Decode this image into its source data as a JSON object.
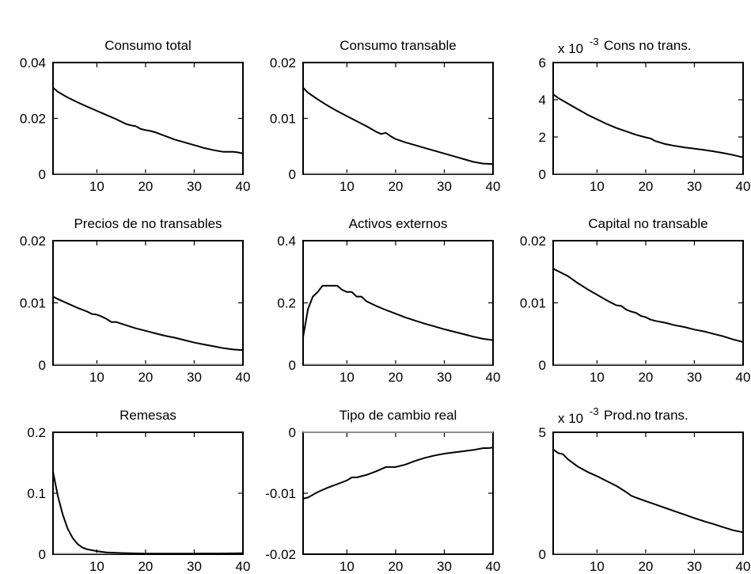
{
  "chart_data": [
    {
      "type": "line",
      "title": "Consumo total",
      "multiplier_text": "",
      "multiplier_exp": "",
      "xlim": [
        1,
        40
      ],
      "ylim": [
        0,
        0.04
      ],
      "xticks": [
        "10",
        "20",
        "30",
        "40"
      ],
      "yticks": [
        "0",
        "0.02",
        "0.04"
      ],
      "x": [
        1,
        2,
        4,
        6,
        8,
        10,
        12,
        14,
        16,
        17,
        18,
        19,
        20,
        21,
        22,
        24,
        26,
        28,
        30,
        32,
        34,
        36,
        38,
        39,
        40
      ],
      "y": [
        0.031,
        0.0295,
        0.0275,
        0.0258,
        0.0242,
        0.0227,
        0.0212,
        0.0197,
        0.018,
        0.0175,
        0.0172,
        0.0162,
        0.0158,
        0.0155,
        0.015,
        0.0137,
        0.0124,
        0.0114,
        0.0104,
        0.0094,
        0.0086,
        0.008,
        0.008,
        0.0078,
        0.0074
      ]
    },
    {
      "type": "line",
      "title": "Consumo transable",
      "multiplier_text": "",
      "multiplier_exp": "",
      "xlim": [
        1,
        40
      ],
      "ylim": [
        0,
        0.02
      ],
      "xticks": [
        "10",
        "20",
        "30",
        "40"
      ],
      "yticks": [
        "0",
        "0.01",
        "0.02"
      ],
      "x": [
        1,
        2,
        4,
        6,
        8,
        10,
        12,
        14,
        16,
        17,
        18,
        19,
        20,
        22,
        24,
        26,
        28,
        30,
        32,
        34,
        36,
        38,
        40
      ],
      "y": [
        0.0155,
        0.0146,
        0.0134,
        0.0123,
        0.0113,
        0.0104,
        0.0095,
        0.0086,
        0.0076,
        0.0072,
        0.0074,
        0.0068,
        0.0063,
        0.0057,
        0.0052,
        0.0047,
        0.0042,
        0.0037,
        0.0032,
        0.0027,
        0.0022,
        0.0019,
        0.0018
      ]
    },
    {
      "type": "line",
      "title": "Cons no trans.",
      "multiplier_text": "x 10",
      "multiplier_exp": "-3",
      "xlim": [
        1,
        40
      ],
      "ylim": [
        0,
        6
      ],
      "xticks": [
        "10",
        "20",
        "30",
        "40"
      ],
      "yticks": [
        "0",
        "2",
        "4",
        "6"
      ],
      "x": [
        1,
        2,
        4,
        6,
        8,
        10,
        12,
        14,
        16,
        18,
        20,
        21,
        22,
        24,
        26,
        28,
        30,
        32,
        34,
        36,
        38,
        40
      ],
      "y": [
        4.3,
        4.1,
        3.8,
        3.5,
        3.2,
        2.95,
        2.7,
        2.48,
        2.3,
        2.12,
        1.98,
        1.92,
        1.78,
        1.62,
        1.52,
        1.44,
        1.37,
        1.3,
        1.22,
        1.13,
        1.03,
        0.9
      ]
    },
    {
      "type": "line",
      "title": "Precios de no transables",
      "multiplier_text": "",
      "multiplier_exp": "",
      "xlim": [
        1,
        40
      ],
      "ylim": [
        0,
        0.02
      ],
      "xticks": [
        "10",
        "20",
        "30",
        "40"
      ],
      "yticks": [
        "0",
        "0.01",
        "0.02"
      ],
      "x": [
        1,
        2,
        4,
        6,
        8,
        9,
        10,
        11,
        12,
        13,
        14,
        16,
        18,
        20,
        22,
        24,
        26,
        28,
        30,
        32,
        34,
        36,
        38,
        40
      ],
      "y": [
        0.011,
        0.0106,
        0.0099,
        0.0092,
        0.0086,
        0.0082,
        0.0081,
        0.0078,
        0.0074,
        0.0069,
        0.0069,
        0.0064,
        0.0059,
        0.0055,
        0.0051,
        0.0047,
        0.0044,
        0.004,
        0.0036,
        0.0033,
        0.003,
        0.0027,
        0.0025,
        0.0024
      ]
    },
    {
      "type": "line",
      "title": "Activos externos",
      "multiplier_text": "",
      "multiplier_exp": "",
      "xlim": [
        1,
        40
      ],
      "ylim": [
        0,
        0.4
      ],
      "xticks": [
        "10",
        "20",
        "30",
        "40"
      ],
      "yticks": [
        "0",
        "0.2",
        "0.4"
      ],
      "x": [
        1,
        2,
        3,
        4,
        5,
        6,
        7,
        8,
        9,
        10,
        11,
        12,
        13,
        14,
        16,
        18,
        20,
        22,
        24,
        26,
        28,
        30,
        32,
        34,
        36,
        38,
        40
      ],
      "y": [
        0.09,
        0.18,
        0.22,
        0.235,
        0.255,
        0.255,
        0.255,
        0.255,
        0.242,
        0.235,
        0.235,
        0.22,
        0.22,
        0.205,
        0.19,
        0.177,
        0.165,
        0.153,
        0.143,
        0.133,
        0.124,
        0.115,
        0.107,
        0.099,
        0.091,
        0.084,
        0.08
      ]
    },
    {
      "type": "line",
      "title": "Capital no transable",
      "multiplier_text": "",
      "multiplier_exp": "",
      "xlim": [
        1,
        40
      ],
      "ylim": [
        0,
        0.02
      ],
      "xticks": [
        "10",
        "20",
        "30",
        "40"
      ],
      "yticks": [
        "0",
        "0.01",
        "0.02"
      ],
      "x": [
        1,
        2,
        4,
        6,
        8,
        10,
        12,
        14,
        15,
        16,
        17,
        18,
        19,
        20,
        21,
        22,
        24,
        26,
        28,
        30,
        32,
        34,
        36,
        38,
        40
      ],
      "y": [
        0.0155,
        0.0151,
        0.0143,
        0.0132,
        0.0122,
        0.0113,
        0.0104,
        0.0096,
        0.0095,
        0.0089,
        0.0086,
        0.0084,
        0.0079,
        0.0077,
        0.0073,
        0.0071,
        0.0068,
        0.0064,
        0.0061,
        0.0057,
        0.0054,
        0.005,
        0.0046,
        0.0041,
        0.0037
      ]
    },
    {
      "type": "line",
      "title": "Remesas",
      "multiplier_text": "",
      "multiplier_exp": "",
      "xlim": [
        1,
        40
      ],
      "ylim": [
        0,
        0.2
      ],
      "xticks": [
        "10",
        "20",
        "30",
        "40"
      ],
      "yticks": [
        "0",
        "0.1",
        "0.2"
      ],
      "x": [
        1,
        2,
        3,
        4,
        5,
        6,
        7,
        8,
        10,
        12,
        15,
        20,
        25,
        30,
        35,
        40
      ],
      "y": [
        0.135,
        0.095,
        0.065,
        0.042,
        0.027,
        0.017,
        0.011,
        0.008,
        0.005,
        0.003,
        0.002,
        0.001,
        0.001,
        0.001,
        0.0012,
        0.0015
      ]
    },
    {
      "type": "line",
      "title": "Tipo de cambio real",
      "multiplier_text": "",
      "multiplier_exp": "",
      "xlim": [
        1,
        40
      ],
      "ylim": [
        -0.02,
        0
      ],
      "xticks": [
        "10",
        "20",
        "30",
        "40"
      ],
      "yticks": [
        "-0.02",
        "-0.01",
        "0"
      ],
      "x": [
        1,
        2,
        4,
        6,
        8,
        10,
        11,
        12,
        14,
        16,
        18,
        20,
        22,
        24,
        26,
        28,
        30,
        32,
        34,
        36,
        38,
        39,
        40
      ],
      "y": [
        -0.0109,
        -0.0107,
        -0.0098,
        -0.0091,
        -0.0085,
        -0.0079,
        -0.0074,
        -0.0074,
        -0.007,
        -0.0064,
        -0.0057,
        -0.0057,
        -0.0053,
        -0.0047,
        -0.0042,
        -0.0038,
        -0.0035,
        -0.0033,
        -0.0031,
        -0.0029,
        -0.0026,
        -0.0026,
        -0.0025
      ]
    },
    {
      "type": "line",
      "title": "Prod.no trans.",
      "multiplier_text": "x 10",
      "multiplier_exp": "-3",
      "xlim": [
        1,
        40
      ],
      "ylim": [
        0,
        5
      ],
      "xticks": [
        "10",
        "20",
        "30",
        "40"
      ],
      "yticks": [
        "0",
        "5"
      ],
      "x": [
        1,
        2,
        3,
        4,
        6,
        8,
        10,
        12,
        14,
        16,
        17,
        18,
        20,
        22,
        24,
        26,
        28,
        30,
        32,
        34,
        36,
        38,
        40
      ],
      "y": [
        4.3,
        4.15,
        4.1,
        3.9,
        3.6,
        3.38,
        3.2,
        3.0,
        2.8,
        2.55,
        2.4,
        2.32,
        2.18,
        2.04,
        1.9,
        1.76,
        1.62,
        1.48,
        1.35,
        1.23,
        1.1,
        0.98,
        0.9
      ]
    }
  ]
}
